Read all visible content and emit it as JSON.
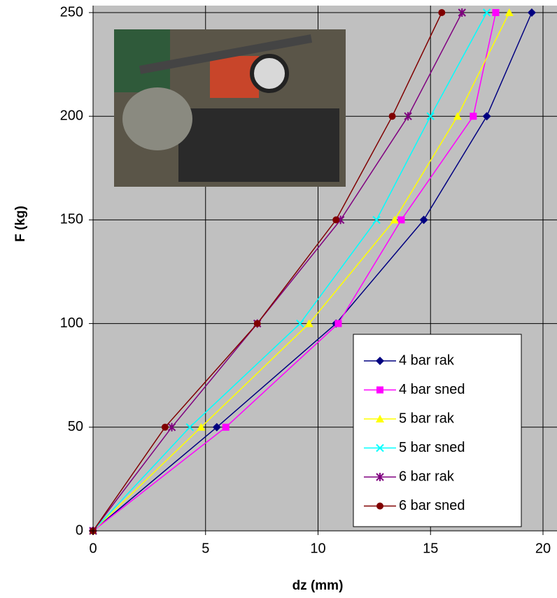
{
  "chart_data": {
    "type": "line",
    "xlabel": "dz (mm)",
    "ylabel": "F (kg)",
    "x_values_note_free": null,
    "xlim": [
      0,
      20
    ],
    "xticks": [
      0,
      5,
      10,
      15,
      20
    ],
    "ylim": [
      0,
      250
    ],
    "yticks": [
      0,
      50,
      100,
      150,
      200,
      250
    ],
    "grid": true,
    "legend": "lower right",
    "series": [
      {
        "name": "4 bar rak",
        "color": "#000080",
        "marker": "diamond",
        "x": [
          0,
          5.5,
          10.8,
          14.7,
          17.5,
          19.5
        ],
        "values": [
          0,
          50,
          100,
          150,
          200,
          250
        ]
      },
      {
        "name": "4 bar sned",
        "color": "#ff00ff",
        "marker": "square",
        "x": [
          0,
          5.9,
          10.9,
          13.7,
          16.9,
          17.9
        ],
        "values": [
          0,
          50,
          100,
          150,
          200,
          250
        ]
      },
      {
        "name": "5 bar rak",
        "color": "#ffff00",
        "marker": "triangle",
        "x": [
          0,
          4.8,
          9.6,
          13.4,
          16.2,
          18.5
        ],
        "values": [
          0,
          50,
          100,
          150,
          200,
          250
        ]
      },
      {
        "name": "5 bar sned",
        "color": "#00ffff",
        "marker": "x",
        "x": [
          0,
          4.3,
          9.2,
          12.6,
          15.0,
          17.5
        ],
        "values": [
          0,
          50,
          100,
          150,
          200,
          250
        ]
      },
      {
        "name": "6 bar rak",
        "color": "#800080",
        "marker": "star",
        "x": [
          0,
          3.5,
          7.3,
          11.0,
          14.0,
          16.4
        ],
        "values": [
          0,
          50,
          100,
          150,
          200,
          250
        ]
      },
      {
        "name": "6 bar sned",
        "color": "#800000",
        "marker": "circle",
        "x": [
          0,
          3.2,
          7.3,
          10.8,
          13.3,
          15.5
        ],
        "values": [
          0,
          50,
          100,
          150,
          200,
          250
        ]
      }
    ]
  }
}
